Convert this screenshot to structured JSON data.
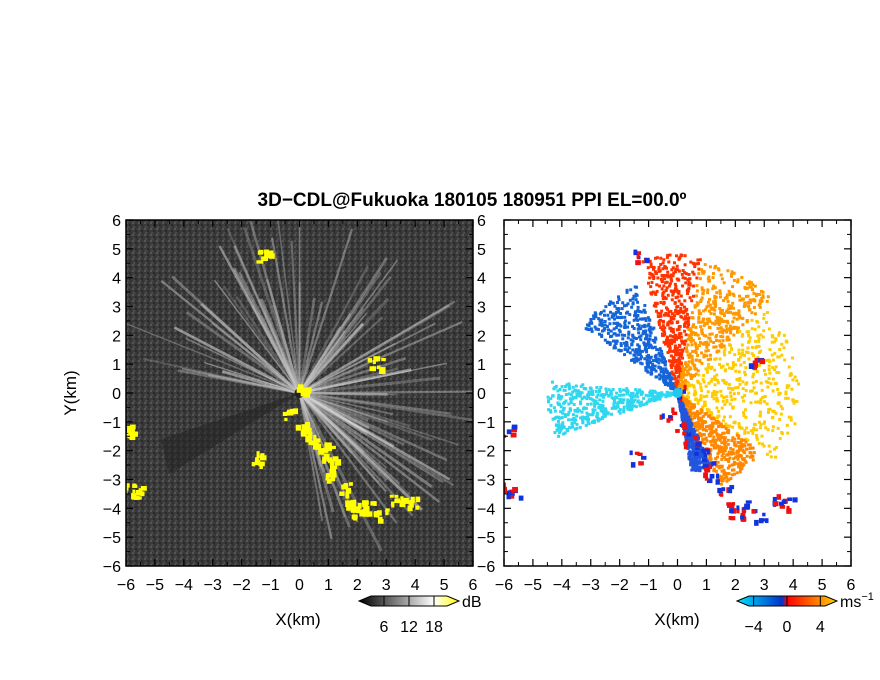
{
  "figure": {
    "title": "3D−CDL@Fukuoka 180105 180951 PPI EL=00.0º"
  },
  "chart_data": [
    {
      "type": "heatmap",
      "panel": "left",
      "title": "",
      "xlabel": "X(km)",
      "ylabel": "Y(km)",
      "xlim": [
        -6,
        6
      ],
      "ylim": [
        -6,
        6
      ],
      "x_ticks": [
        "−6",
        "−5",
        "−4",
        "−3",
        "−2",
        "−1",
        "0",
        "1",
        "2",
        "3",
        "4",
        "5",
        "6"
      ],
      "y_ticks": [
        "6",
        "5",
        "4",
        "3",
        "2",
        "1",
        "0",
        "−1",
        "−2",
        "−3",
        "−4",
        "−5",
        "−6"
      ],
      "colorbar": {
        "unit": "dB",
        "ticks": [
          "6",
          "12",
          "18"
        ],
        "range": [
          0,
          24
        ],
        "colors": [
          "#000000",
          "#ffffff",
          "#ffff00"
        ]
      },
      "background_color": "#3c3c3c",
      "echo_color": "#ffff00",
      "echo_clusters": [
        {
          "name": "ridge-near",
          "points": [
            [
              -0.4,
              -0.7
            ],
            [
              0.1,
              -1.2
            ],
            [
              0.4,
              -1.6
            ],
            [
              0.8,
              -1.9
            ],
            [
              1.0,
              -2.4
            ],
            [
              1.1,
              -2.8
            ]
          ]
        },
        {
          "name": "ridge-far",
          "points": [
            [
              1.6,
              -3.3
            ],
            [
              1.8,
              -3.8
            ],
            [
              2.0,
              -4.1
            ],
            [
              2.4,
              -3.9
            ],
            [
              2.8,
              -4.2
            ],
            [
              3.3,
              -3.7
            ],
            [
              3.8,
              -3.8
            ]
          ]
        },
        {
          "name": "west-edge",
          "points": [
            [
              -5.95,
              -1.3
            ],
            [
              -5.95,
              -3.3
            ],
            [
              -5.7,
              -3.4
            ]
          ]
        },
        {
          "name": "isolated",
          "points": [
            [
              -1.3,
              4.8
            ],
            [
              2.6,
              1.1
            ],
            [
              -1.5,
              -2.2
            ],
            [
              0.0,
              0.1
            ]
          ]
        }
      ]
    },
    {
      "type": "heatmap",
      "panel": "right",
      "title": "",
      "xlabel": "X(km)",
      "ylabel": "",
      "xlim": [
        -6,
        6
      ],
      "ylim": [
        -6,
        6
      ],
      "x_ticks": [
        "−6",
        "−5",
        "−4",
        "−3",
        "−2",
        "−1",
        "0",
        "1",
        "2",
        "3",
        "4",
        "5",
        "6"
      ],
      "y_ticks": [
        "6",
        "5",
        "4",
        "3",
        "2",
        "1",
        "0",
        "−1",
        "−2",
        "−3",
        "−4",
        "−5",
        "−6"
      ],
      "colorbar": {
        "unit": "ms",
        "unit_exponent": "−1",
        "ticks": [
          "−4",
          "0",
          "4"
        ],
        "range": [
          -6,
          6
        ],
        "colors": [
          "#00e5ff",
          "#0044cc",
          "#ff0000",
          "#ffd200"
        ]
      },
      "velocity_sectors": [
        {
          "name": "cyan-west",
          "from_deg": 175,
          "to_deg": 200,
          "max_range_km": 4.5,
          "velocity": -5,
          "color": "#2fd7ef"
        },
        {
          "name": "blue-northwest",
          "from_deg": 110,
          "to_deg": 145,
          "max_range_km": 4.0,
          "velocity": -3,
          "color": "#1565d8"
        },
        {
          "name": "red-north",
          "from_deg": 80,
          "to_deg": 105,
          "max_range_km": 4.8,
          "velocity": 1,
          "color": "#ff3300"
        },
        {
          "name": "orange-northeast",
          "from_deg": 45,
          "to_deg": 80,
          "max_range_km": 4.6,
          "velocity": 3,
          "color": "#ff9900"
        },
        {
          "name": "yellow-east",
          "from_deg": -35,
          "to_deg": 45,
          "max_range_km": 4.2,
          "velocity": 5,
          "color": "#ffcc00"
        },
        {
          "name": "orange-southeast",
          "from_deg": -65,
          "to_deg": -35,
          "max_range_km": 3.5,
          "velocity": 3,
          "color": "#ff8800"
        },
        {
          "name": "blue-south",
          "from_deg": -80,
          "to_deg": -65,
          "max_range_km": 2.8,
          "velocity": -2,
          "color": "#2255dd"
        }
      ]
    }
  ]
}
